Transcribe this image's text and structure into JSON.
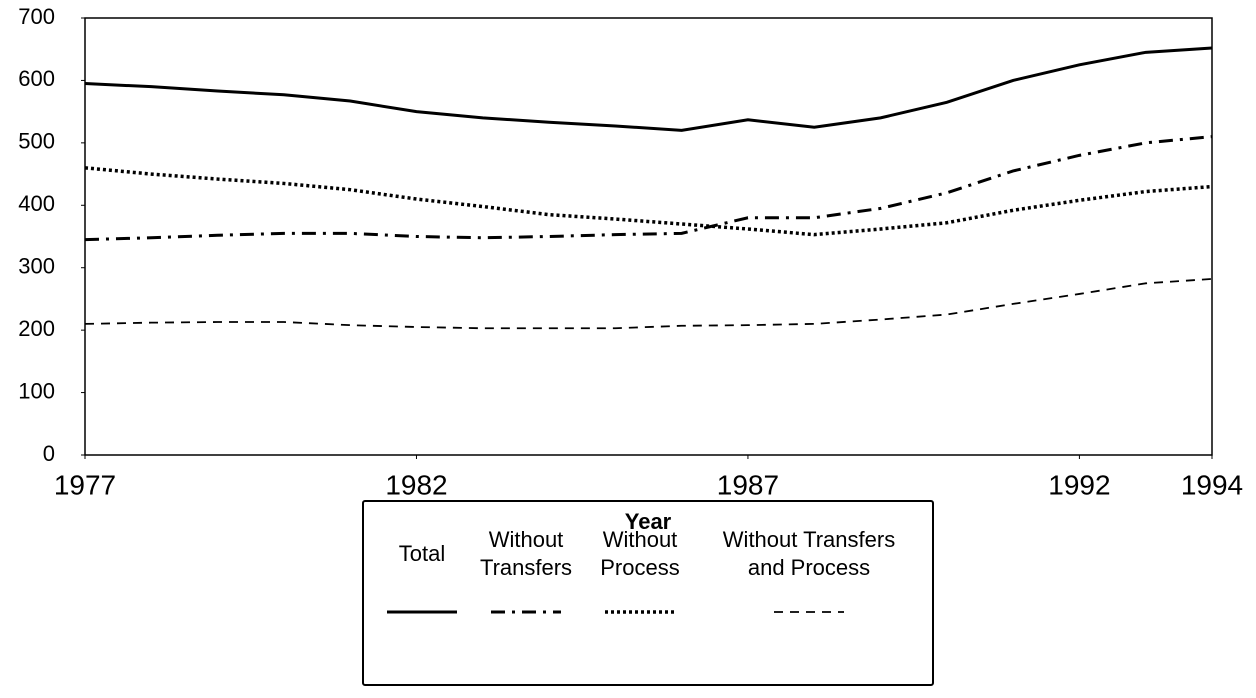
{
  "chart_data": {
    "type": "line",
    "x": [
      1977,
      1978,
      1979,
      1980,
      1981,
      1982,
      1983,
      1984,
      1985,
      1986,
      1987,
      1988,
      1989,
      1990,
      1991,
      1992,
      1993,
      1994
    ],
    "xlabel": "Year",
    "xlim": [
      1977,
      1994
    ],
    "xticks": [
      1977,
      1982,
      1987,
      1992,
      1994
    ],
    "ylim": [
      0,
      700
    ],
    "yticks": [
      0,
      100,
      200,
      300,
      400,
      500,
      600,
      700
    ],
    "series": [
      {
        "name": "Total",
        "color": "#000000",
        "style": "solid",
        "values": [
          595,
          590,
          583,
          577,
          567,
          550,
          540,
          533,
          527,
          520,
          537,
          525,
          540,
          565,
          600,
          625,
          645,
          652
        ]
      },
      {
        "name": "Without Transfers",
        "color": "#000000",
        "style": "dashdot",
        "values": [
          345,
          348,
          352,
          355,
          355,
          350,
          348,
          350,
          353,
          355,
          380,
          380,
          395,
          420,
          455,
          480,
          500,
          510
        ]
      },
      {
        "name": "Without Process",
        "color": "#000000",
        "style": "dotted",
        "values": [
          460,
          450,
          442,
          435,
          425,
          410,
          398,
          385,
          378,
          370,
          362,
          353,
          362,
          372,
          392,
          408,
          422,
          430
        ]
      },
      {
        "name": "Without Transfers and Process",
        "color": "#000000",
        "style": "dashed",
        "values": [
          210,
          212,
          213,
          213,
          208,
          205,
          203,
          203,
          203,
          207,
          208,
          210,
          217,
          225,
          242,
          258,
          275,
          282
        ]
      }
    ]
  }
}
